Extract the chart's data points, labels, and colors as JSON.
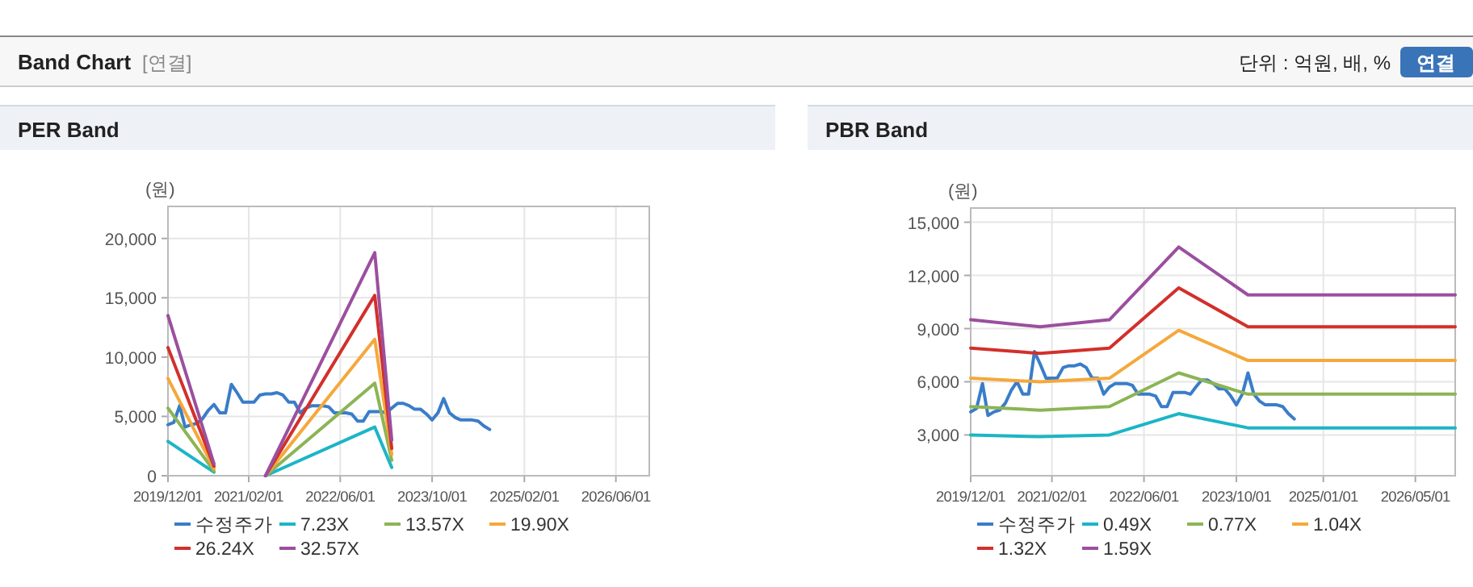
{
  "chart_data": [
    {
      "type": "other",
      "title": "Band Chart",
      "subtitle": "[연결]",
      "annotations": [
        "단위 : 억원, 배, %",
        "연결"
      ]
    },
    {
      "type": "line",
      "title": "PER Band",
      "ylabel": "(원)",
      "grid": true,
      "legend": "bottom",
      "xlim": [
        "2019-12-01",
        "2026-11-25"
      ],
      "xticks": [
        {
          "value": "2019-12-01",
          "label": "2019/12/01"
        },
        {
          "value": "2021-02-01",
          "label": "2021/02/01"
        },
        {
          "value": "2022-06-01",
          "label": "2022/06/01"
        },
        {
          "value": "2023-10-01",
          "label": "2023/10/01"
        },
        {
          "value": "2025-02-01",
          "label": "2025/02/01"
        },
        {
          "value": "2026-06-01",
          "label": "2026/06/01"
        }
      ],
      "ylim": [
        0,
        22700
      ],
      "yticks": [
        0,
        {
          "value": 5000,
          "label": "5,000"
        },
        {
          "value": 10000,
          "label": "10,000"
        },
        {
          "value": 15000,
          "label": "15,000"
        },
        {
          "value": 20000,
          "label": "20,000"
        }
      ],
      "series": [
        {
          "name": "수정주가",
          "color": "#3a7dc9",
          "x": [
            "2019-12",
            "2020-01",
            "2020-02",
            "2020-03",
            "2020-04",
            "2020-05",
            "2020-06",
            "2020-07",
            "2020-08",
            "2020-09",
            "2020-10",
            "2020-11",
            "2020-12",
            "2021-01",
            "2021-02",
            "2021-03",
            "2021-04",
            "2021-05",
            "2021-06",
            "2021-07",
            "2021-08",
            "2021-09",
            "2021-10",
            "2021-11",
            "2021-12",
            "2022-01",
            "2022-02",
            "2022-03",
            "2022-04",
            "2022-05",
            "2022-06",
            "2022-07",
            "2022-08",
            "2022-09",
            "2022-10",
            "2022-11",
            "2022-12",
            "2023-01",
            "2023-02",
            "2023-03",
            "2023-04",
            "2023-05",
            "2023-06",
            "2023-07",
            "2023-08",
            "2023-09",
            "2023-10",
            "2023-11",
            "2023-12",
            "2024-01",
            "2024-02",
            "2024-03",
            "2024-04",
            "2024-05",
            "2024-06",
            "2024-07",
            "2024-08"
          ],
          "values": [
            4300,
            4500,
            5900,
            4100,
            4300,
            4400,
            4800,
            5500,
            6000,
            5300,
            5300,
            7700,
            7000,
            6200,
            6200,
            6200,
            6800,
            6900,
            6900,
            7000,
            6800,
            6200,
            6200,
            5300,
            5700,
            5900,
            5900,
            5900,
            5800,
            5300,
            5300,
            5300,
            5200,
            4600,
            4600,
            5400,
            5400,
            5400,
            5300,
            5700,
            6100,
            6100,
            5900,
            5600,
            5600,
            5200,
            4700,
            5300,
            6500,
            5300,
            4900,
            4700,
            4700,
            4700,
            4600,
            4200,
            3900
          ]
        },
        {
          "name": "7.23X",
          "color": "#1cb5c6",
          "x": [
            "2019-12",
            "2020-08",
            "2021-01",
            "2021-05",
            "2022-12",
            "2023-03"
          ],
          "values": [
            2900,
            300,
            null,
            0,
            4100,
            700
          ]
        },
        {
          "name": "13.57X",
          "color": "#8cb455",
          "x": [
            "2019-12",
            "2020-08",
            "2021-01",
            "2021-05",
            "2022-12",
            "2023-03"
          ],
          "values": [
            5700,
            400,
            null,
            0,
            7800,
            1300
          ]
        },
        {
          "name": "19.90X",
          "color": "#f5a83a",
          "x": [
            "2019-12",
            "2020-08",
            "2021-01",
            "2021-05",
            "2022-12",
            "2023-03"
          ],
          "values": [
            8200,
            600,
            null,
            0,
            11500,
            1800
          ]
        },
        {
          "name": "26.24X",
          "color": "#d2302b",
          "x": [
            "2019-12",
            "2020-08",
            "2021-01",
            "2021-05",
            "2022-12",
            "2023-03"
          ],
          "values": [
            10800,
            800,
            null,
            0,
            15200,
            2300
          ]
        },
        {
          "name": "32.57X",
          "color": "#9b4f9e",
          "x": [
            "2019-12",
            "2020-08",
            "2021-01",
            "2021-05",
            "2022-12",
            "2023-03"
          ],
          "values": [
            13500,
            1000,
            null,
            0,
            18800,
            3000
          ]
        }
      ]
    },
    {
      "type": "line",
      "title": "PBR Band",
      "ylabel": "(원)",
      "grid": true,
      "legend": "bottom",
      "xlim": [
        "2019-12-01",
        "2026-11-27"
      ],
      "xticks": [
        {
          "value": "2019-12-01",
          "label": "2019/12/01"
        },
        {
          "value": "2021-02-01",
          "label": "2021/02/01"
        },
        {
          "value": "2022-06-01",
          "label": "2022/06/01"
        },
        {
          "value": "2023-10-01",
          "label": "2023/10/01"
        },
        {
          "value": "2025-01-01",
          "label": "2025/01/01"
        },
        {
          "value": "2026-05-01",
          "label": "2026/05/01"
        }
      ],
      "ylim": [
        700,
        15800
      ],
      "yticks": [
        {
          "value": 3000,
          "label": "3,000"
        },
        {
          "value": 6000,
          "label": "6,000"
        },
        {
          "value": 9000,
          "label": "9,000"
        },
        {
          "value": 12000,
          "label": "12,000"
        },
        {
          "value": 15000,
          "label": "15,000"
        }
      ],
      "series": [
        {
          "name": "수정주가",
          "color": "#3a7dc9",
          "x": [
            "2019-12",
            "2020-01",
            "2020-02",
            "2020-03",
            "2020-04",
            "2020-05",
            "2020-06",
            "2020-07",
            "2020-08",
            "2020-09",
            "2020-10",
            "2020-11",
            "2020-12",
            "2021-01",
            "2021-02",
            "2021-03",
            "2021-04",
            "2021-05",
            "2021-06",
            "2021-07",
            "2021-08",
            "2021-09",
            "2021-10",
            "2021-11",
            "2021-12",
            "2022-01",
            "2022-02",
            "2022-03",
            "2022-04",
            "2022-05",
            "2022-06",
            "2022-07",
            "2022-08",
            "2022-09",
            "2022-10",
            "2022-11",
            "2022-12",
            "2023-01",
            "2023-02",
            "2023-03",
            "2023-04",
            "2023-05",
            "2023-06",
            "2023-07",
            "2023-08",
            "2023-09",
            "2023-10",
            "2023-11",
            "2023-12",
            "2024-01",
            "2024-02",
            "2024-03",
            "2024-04",
            "2024-05",
            "2024-06",
            "2024-07",
            "2024-08"
          ],
          "values": [
            4300,
            4500,
            5900,
            4100,
            4300,
            4400,
            4800,
            5500,
            6000,
            5300,
            5300,
            7700,
            7000,
            6200,
            6200,
            6200,
            6800,
            6900,
            6900,
            7000,
            6800,
            6200,
            6200,
            5300,
            5700,
            5900,
            5900,
            5900,
            5800,
            5300,
            5300,
            5300,
            5200,
            4600,
            4600,
            5400,
            5400,
            5400,
            5300,
            5700,
            6100,
            6100,
            5900,
            5600,
            5600,
            5200,
            4700,
            5300,
            6500,
            5300,
            4900,
            4700,
            4700,
            4700,
            4600,
            4200,
            3900
          ]
        },
        {
          "name": "0.49X",
          "color": "#1cb5c6",
          "x": [
            "2019-12",
            "2020-12",
            "2021-12",
            "2022-12",
            "2023-12",
            "2026-11-27"
          ],
          "values": [
            3000,
            2900,
            3000,
            4200,
            3400,
            3400
          ]
        },
        {
          "name": "0.77X",
          "color": "#8cb455",
          "x": [
            "2019-12",
            "2020-12",
            "2021-12",
            "2022-12",
            "2023-12",
            "2026-11-27"
          ],
          "values": [
            4600,
            4400,
            4600,
            6500,
            5300,
            5300
          ]
        },
        {
          "name": "1.04X",
          "color": "#f5a83a",
          "x": [
            "2019-12",
            "2020-12",
            "2021-12",
            "2022-12",
            "2023-12",
            "2026-11-27"
          ],
          "values": [
            6200,
            6000,
            6200,
            8900,
            7200,
            7200
          ]
        },
        {
          "name": "1.32X",
          "color": "#d2302b",
          "x": [
            "2019-12",
            "2020-12",
            "2021-12",
            "2022-12",
            "2023-12",
            "2026-11-27"
          ],
          "values": [
            7900,
            7600,
            7900,
            11300,
            9100,
            9100
          ]
        },
        {
          "name": "1.59X",
          "color": "#9b4f9e",
          "x": [
            "2019-12",
            "2020-12",
            "2021-12",
            "2022-12",
            "2023-12",
            "2026-11-27"
          ],
          "values": [
            9500,
            9100,
            9500,
            13600,
            10900,
            10900
          ]
        }
      ]
    }
  ]
}
